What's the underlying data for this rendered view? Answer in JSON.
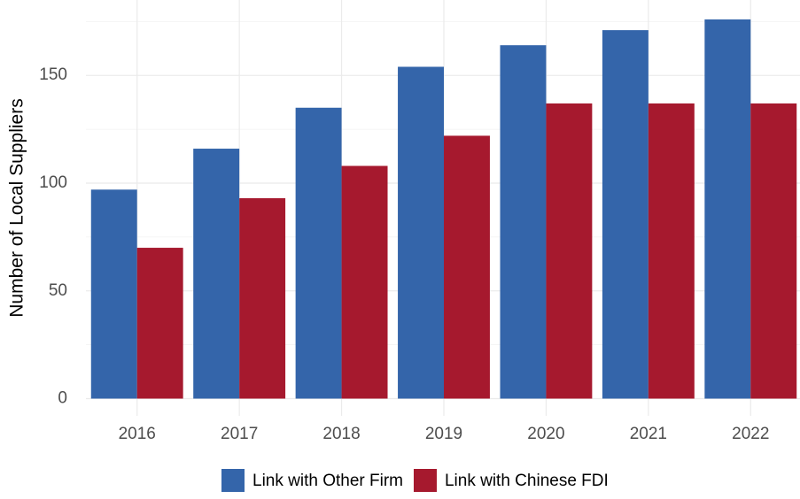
{
  "chart_data": {
    "type": "bar",
    "y_label": "Number of Local Suppliers",
    "categories": [
      "2016",
      "2017",
      "2018",
      "2019",
      "2020",
      "2021",
      "2022"
    ],
    "series": [
      {
        "name": "Link with Other Firm",
        "color": "#3465aa",
        "values": [
          97,
          116,
          135,
          154,
          164,
          171,
          176
        ]
      },
      {
        "name": "Link with Chinese FDI",
        "color": "#a6192e",
        "values": [
          70,
          93,
          108,
          122,
          137,
          137,
          137
        ]
      }
    ],
    "ylim": [
      -8,
      185
    ],
    "yticks": [
      0,
      50,
      100,
      150
    ],
    "grid": true,
    "legend": "bottom"
  }
}
